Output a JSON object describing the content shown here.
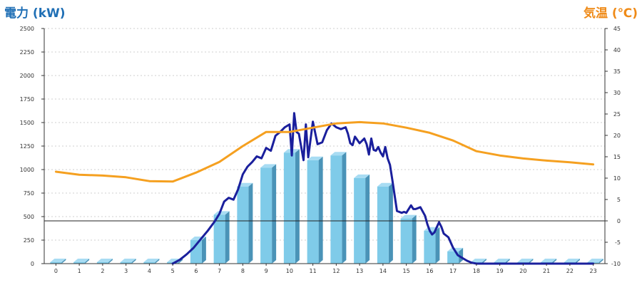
{
  "chart_data": {
    "type": "bar",
    "left_axis_title": "電力 (kW)",
    "right_axis_title": "気温 (℃)",
    "categories": [
      "0",
      "1",
      "2",
      "3",
      "4",
      "5",
      "6",
      "7",
      "8",
      "9",
      "10",
      "11",
      "12",
      "13",
      "14",
      "15",
      "16",
      "17",
      "18",
      "19",
      "20",
      "21",
      "22",
      "23"
    ],
    "left_ylim": [
      0,
      2500
    ],
    "left_ticks": [
      "0",
      "250",
      "500",
      "750",
      "1000",
      "1250",
      "1500",
      "1750",
      "2000",
      "2250",
      "2500"
    ],
    "right_ylim": [
      -10,
      45
    ],
    "right_ticks": [
      "-10",
      "-5",
      "0",
      "5",
      "10",
      "15",
      "20",
      "25",
      "30",
      "35",
      "40",
      "45"
    ],
    "grid": true,
    "series": [
      {
        "kind": "bar",
        "axis": "left",
        "values": [
          15,
          15,
          15,
          15,
          15,
          15,
          250,
          520,
          820,
          1020,
          1180,
          1100,
          1150,
          910,
          820,
          480,
          350,
          130,
          15,
          15,
          15,
          15,
          15,
          15
        ]
      },
      {
        "kind": "line",
        "axis": "left",
        "x": [
          5.0,
          5.3,
          5.6,
          5.9,
          6.2,
          6.5,
          6.8,
          7.0,
          7.2,
          7.4,
          7.6,
          7.8,
          8.0,
          8.2,
          8.4,
          8.6,
          8.8,
          9.0,
          9.2,
          9.4,
          9.6,
          9.8,
          10.0,
          10.1,
          10.2,
          10.3,
          10.4,
          10.6,
          10.7,
          10.8,
          11.0,
          11.2,
          11.4,
          11.6,
          11.8,
          12.0,
          12.2,
          12.4,
          12.5,
          12.6,
          12.7,
          12.8,
          13.0,
          13.2,
          13.3,
          13.4,
          13.5,
          13.6,
          13.7,
          13.8,
          13.9,
          14.0,
          14.1,
          14.2,
          14.3,
          14.4,
          14.6,
          14.8,
          14.9,
          15.0,
          15.2,
          15.3,
          15.4,
          15.6,
          15.8,
          15.9,
          16.0,
          16.1,
          16.2,
          16.4,
          16.5,
          16.6,
          16.8,
          17.0,
          17.2,
          17.4,
          17.6,
          17.8,
          18.0,
          18.5,
          19,
          20,
          21,
          22,
          23
        ],
        "values": [
          0,
          40,
          100,
          170,
          260,
          350,
          450,
          530,
          660,
          700,
          680,
          790,
          950,
          1030,
          1080,
          1140,
          1120,
          1230,
          1200,
          1360,
          1400,
          1450,
          1480,
          1150,
          1600,
          1400,
          1380,
          1100,
          1480,
          1130,
          1510,
          1270,
          1290,
          1420,
          1490,
          1450,
          1430,
          1450,
          1380,
          1280,
          1260,
          1350,
          1280,
          1330,
          1270,
          1160,
          1330,
          1210,
          1200,
          1240,
          1180,
          1140,
          1240,
          1120,
          1050,
          890,
          560,
          540,
          550,
          540,
          620,
          580,
          580,
          600,
          510,
          420,
          350,
          310,
          330,
          440,
          390,
          320,
          280,
          170,
          90,
          60,
          30,
          10,
          0,
          0,
          0,
          0,
          0,
          0,
          0
        ]
      },
      {
        "kind": "line",
        "axis": "right",
        "x": [
          0,
          1,
          2,
          3,
          4,
          5,
          6,
          7,
          8,
          9,
          10,
          11,
          12,
          13,
          14,
          15,
          16,
          17,
          18,
          19,
          20,
          21,
          22,
          23
        ],
        "values": [
          11.5,
          10.8,
          10.6,
          10.2,
          9.3,
          9.2,
          11.3,
          13.8,
          17.5,
          20.8,
          20.8,
          21.8,
          22.8,
          23.1,
          22.8,
          21.8,
          20.6,
          18.8,
          16.3,
          15.3,
          14.6,
          14.1,
          13.7,
          13.2
        ]
      }
    ],
    "reference_line": {
      "axis": "right",
      "value": 0
    },
    "colors": {
      "bar_top": "#a8dcf3",
      "bar_face": "#7fcbe9",
      "bar_side": "#4a93b7",
      "power_line": "#1a1f9c",
      "temp_line": "#f5a020",
      "left_title": "#1f6fb5",
      "right_title": "#ef8a17",
      "grid": "#cfcfcf"
    }
  }
}
